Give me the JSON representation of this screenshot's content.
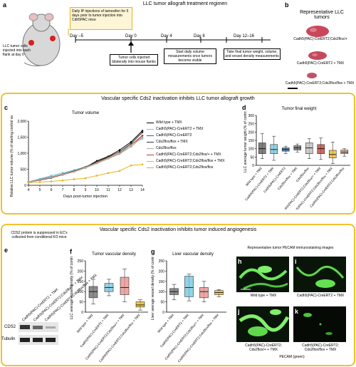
{
  "panelA": {
    "label": "a",
    "title": "LLC tumor allograft treatment regimen",
    "mouse_text": "LLC tumor cells injected into each flank at day 0",
    "box_text": "Daily IP injections of tamoxifen for 5 days prior to tumor injection into Cdh5PAC mice",
    "days": [
      "Day –5",
      "Day 0",
      "Day 4",
      "Day 8",
      "Day 12–16"
    ],
    "step1": "Tumor cells injected bilaterally into mouse flanks",
    "step2": "Start daily volume measurements once tumors become visible",
    "step3": "Take final tumor weight, volume, and vessel density measurements"
  },
  "panelB": {
    "label": "b",
    "title": "Representative LLC tumors",
    "t1": "Cadh5(PAC)-CreERT2;Cds2flox/+",
    "t2": "Cadh5(PAC)-CreERT2 + TMX",
    "t3": "Cadh5(PAC)-CreERT2;Cds2flox/flox + TMX"
  },
  "sectionCD": {
    "title": "Vascular specific Cds2 inactivation inhibits LLC tumor allograft growth"
  },
  "panelC": {
    "label": "c",
    "title": "Tumor volume",
    "ylabel": "Relative LLC tumor volume (% of starting control value)",
    "xlabel": "Days post-tumor injection",
    "yticks": [
      "0",
      "500",
      "1,000",
      "1,500",
      "2,000"
    ],
    "xticks": [
      "4",
      "5",
      "6",
      "7",
      "8",
      "9",
      "10",
      "11",
      "12",
      "13",
      "14"
    ],
    "legend": [
      {
        "name": "Wild type + TMX",
        "color": "#000000"
      },
      {
        "name": "Cadh5(PAC)-CreERT2 + TMX",
        "color": "#6fc3df"
      },
      {
        "name": "Cadh5(PAC)-CreERT2",
        "color": "#2e5f9e"
      },
      {
        "name": "Cds2flox/flox + TMX",
        "color": "#333333"
      },
      {
        "name": "Cds2flox/flox",
        "color": "#aaaaaa"
      },
      {
        "name": "Cadh5(PAC)-CreERT2;Cds2flox/+ + TMX",
        "color": "#c0392b"
      },
      {
        "name": "Cadh5(PAC)-CreERT2;Cds2flox/flox + TMX",
        "color": "#e8b41c"
      },
      {
        "name": "Cadh5(PAC)-CreERT2;Cds2flox/flox",
        "color": "#c9a27a"
      }
    ]
  },
  "panelD": {
    "label": "d",
    "title": "Tumor final weight",
    "ylabel": "LLC average tumor weight (% of control)",
    "yticks": [
      "0",
      "50",
      "100",
      "150",
      "200",
      "250",
      "300"
    ],
    "categories": [
      "Wild type + TMX",
      "Cadh5(PAC)-CreERT2 + TMX",
      "Cadh5(PAC)-CreERT2",
      "Cds2flox/flox + TMX",
      "Cds2flox/flox",
      "Cadh5(PAC)-CreERT2;Cds2flox/+ + TMX",
      "Cadh5(PAC)-CreERT2;Cds2flox/flox + TMX",
      "Cadh5(PAC)-CreERT2;Cds2flox/flox"
    ]
  },
  "sectionEK": {
    "title": "Vascular specific Cds2 inactivation inhibits tumor induced angiogenesis"
  },
  "panelE": {
    "label": "e",
    "title": "CDS2 protein is suppressed in EC's collected from conditional KO mice",
    "lanes": [
      "Cadh5(PAC)-CreERT2 + TMX",
      "Cadh5(PAC)-CreERT2;Cds2flox/+ + TMX",
      "Cadh5(PAC)-CreERT2;Cds2flox/flox + TMX"
    ],
    "bands": [
      "CDS2",
      "Tubulin"
    ]
  },
  "panelF": {
    "label": "f",
    "title": "Tumor vascular density",
    "ylabel": "LLC average vessel density (% of control)",
    "yticks": [
      "0",
      "50",
      "100",
      "150",
      "200",
      "250"
    ],
    "categories": [
      "Wild type + TMX",
      "Cadh5(PAC)-CreERT2 + TMX",
      "Cadh5(PAC)-CreERT2;Cds2flox/+ + TMX",
      "Cadh5(PAC)-CreERT2;Cds2flox/flox + TMX"
    ]
  },
  "panelG": {
    "label": "g",
    "title": "Liver vascular density",
    "ylabel": "Liver average vessel density (% of control)",
    "yticks": [
      "0",
      "50",
      "100",
      "150",
      "200",
      "250"
    ],
    "categories": [
      "Wild type + TMX",
      "Cadh5(PAC)-CreERT2 + TMX",
      "Cadh5(PAC)-CreERT2;Cds2flox/+ + TMX",
      "Cadh5(PAC)-CreERT2;Cds2flox/flox + TMX"
    ]
  },
  "panelHK": {
    "title": "Representative tumor PECAM immunostaining images",
    "h": {
      "label": "h",
      "caption": "Wild type + TMX"
    },
    "i": {
      "label": "i",
      "caption": "Cadh5(PAC)-CreERT2 + TMX"
    },
    "j": {
      "label": "j",
      "caption": "Cadh5(PAC)-CreERT2; Cds2flox/+ + TMX"
    },
    "k": {
      "label": "k",
      "caption": "Cadh5(PAC)-CreERT2; Cds2flox/flox + TMX"
    },
    "footer": "PECAM (green)"
  },
  "chart_data": [
    {
      "type": "line",
      "title": "Tumor volume",
      "xlabel": "Days post-tumor injection",
      "ylabel": "Relative LLC tumor volume (% of starting control value)",
      "x": [
        4,
        5,
        6,
        7,
        8,
        9,
        10,
        11,
        12,
        13,
        14
      ],
      "ylim": [
        0,
        2000
      ],
      "series": [
        {
          "name": "Wild type + TMX",
          "color": "#000000",
          "values": [
            100,
            160,
            230,
            330,
            430,
            560,
            760,
            900,
            1100,
            1350,
            1700
          ]
        },
        {
          "name": "Cadh5(PAC)-CreERT2 + TMX",
          "color": "#6fc3df",
          "values": [
            110,
            200,
            300,
            390,
            470,
            580,
            720,
            850,
            1000,
            1300,
            1450
          ]
        },
        {
          "name": "Cadh5(PAC)-CreERT2",
          "color": "#2e5f9e",
          "values": [
            100,
            180,
            260,
            350,
            450,
            560,
            700,
            850,
            1000,
            1250,
            1550
          ]
        },
        {
          "name": "Cds2flox/flox + TMX",
          "color": "#333333",
          "values": [
            100,
            170,
            250,
            340,
            440,
            570,
            730,
            880,
            1050,
            1300,
            1650
          ]
        },
        {
          "name": "Cds2flox/flox",
          "color": "#aaaaaa",
          "values": [
            100,
            170,
            240,
            330,
            420,
            540,
            680,
            830,
            980,
            1200,
            1500
          ]
        },
        {
          "name": "Cadh5(PAC)-CreERT2;Cds2flox/+ + TMX",
          "color": "#c0392b",
          "values": [
            100,
            170,
            250,
            330,
            430,
            560,
            700,
            850,
            1000,
            1250,
            1550
          ]
        },
        {
          "name": "Cadh5(PAC)-CreERT2;Cds2flox/flox + TMX",
          "color": "#e8b41c",
          "values": [
            80,
            100,
            120,
            150,
            190,
            220,
            300,
            380,
            450,
            620,
            650
          ]
        },
        {
          "name": "Cadh5(PAC)-CreERT2;Cds2flox/flox",
          "color": "#c9a27a",
          "values": [
            100,
            170,
            250,
            340,
            430,
            560,
            700,
            850,
            1000,
            1250,
            1500
          ]
        }
      ]
    },
    {
      "type": "bar",
      "title": "Tumor final weight",
      "ylabel": "LLC average tumor weight (% of control)",
      "ylim": [
        0,
        300
      ],
      "boxes": [
        {
          "min": 40,
          "q1": 70,
          "median": 100,
          "q3": 135,
          "max": 190,
          "color": "#555555"
        },
        {
          "min": 30,
          "q1": 70,
          "median": 95,
          "q3": 125,
          "max": 175,
          "color": "#6fc3df"
        },
        {
          "min": 70,
          "q1": 85,
          "median": 95,
          "q3": 105,
          "max": 115,
          "color": "#2e5f9e"
        },
        {
          "min": 80,
          "q1": 92,
          "median": 105,
          "q3": 118,
          "max": 128,
          "color": "#666666"
        },
        {
          "min": 40,
          "q1": 70,
          "median": 105,
          "q3": 135,
          "max": 160,
          "color": "#bbbbbb"
        },
        {
          "min": 35,
          "q1": 70,
          "median": 100,
          "q3": 125,
          "max": 165,
          "color": "#c0392b"
        },
        {
          "min": 10,
          "q1": 45,
          "median": 65,
          "q3": 90,
          "max": 140,
          "color": "#e8b41c"
        },
        {
          "min": 55,
          "q1": 70,
          "median": 80,
          "q3": 92,
          "max": 100,
          "color": "#c9a27a"
        }
      ]
    },
    {
      "type": "bar",
      "title": "Tumor vascular density",
      "ylabel": "LLC average vessel density (% of control)",
      "ylim": [
        0,
        250
      ],
      "boxes": [
        {
          "min": 40,
          "q1": 70,
          "median": 100,
          "q3": 125,
          "max": 160,
          "color": "#666666"
        },
        {
          "min": 80,
          "q1": 100,
          "median": 120,
          "q3": 140,
          "max": 160,
          "color": "#6fc3df"
        },
        {
          "min": 50,
          "q1": 85,
          "median": 120,
          "q3": 170,
          "max": 210,
          "color": "#e58a8a"
        },
        {
          "min": 10,
          "q1": 25,
          "median": 35,
          "q3": 50,
          "max": 60,
          "color": "#e8b41c"
        }
      ]
    },
    {
      "type": "bar",
      "title": "Liver vascular density",
      "ylabel": "Liver average vessel density (% of control)",
      "ylim": [
        0,
        250
      ],
      "boxes": [
        {
          "min": 60,
          "q1": 85,
          "median": 100,
          "q3": 115,
          "max": 135,
          "color": "#666666"
        },
        {
          "min": 55,
          "q1": 75,
          "median": 120,
          "q3": 175,
          "max": 185,
          "color": "#6fc3df"
        },
        {
          "min": 50,
          "q1": 70,
          "median": 100,
          "q3": 120,
          "max": 150,
          "color": "#e58a8a"
        },
        {
          "min": 75,
          "q1": 85,
          "median": 95,
          "q3": 105,
          "max": 110,
          "color": "#e8b41c"
        }
      ]
    }
  ]
}
